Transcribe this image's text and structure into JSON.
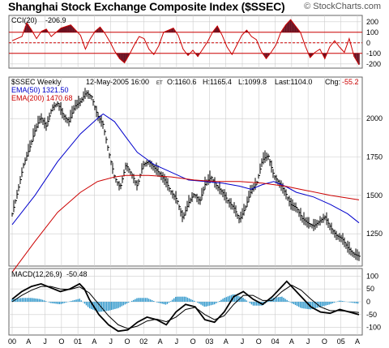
{
  "header": {
    "title": "Shanghai Stock Exchange Composite Index ($SSEC)",
    "credit": "© StockCharts.com"
  },
  "colors": {
    "red": "#cc0000",
    "dark_red": "#6b1020",
    "blue": "#0000cc",
    "macd_hist": "#3399cc",
    "grid": "#cccccc",
    "panel_border": "#666666"
  },
  "chart_data": [
    {
      "type": "line",
      "panel": "cci",
      "legend_label": "CCI(20)",
      "legend_value": "-206.9",
      "yticks": [
        200,
        100,
        0,
        -100,
        -200
      ],
      "ylim": [
        -240,
        260
      ],
      "reference_lines": [
        100,
        0,
        -100
      ],
      "points": [
        [
          0,
          20
        ],
        [
          2,
          60
        ],
        [
          3,
          190
        ],
        [
          4,
          120
        ],
        [
          5,
          40
        ],
        [
          6,
          110
        ],
        [
          7,
          130
        ],
        [
          8,
          60
        ],
        [
          9,
          100
        ],
        [
          10,
          140
        ],
        [
          12,
          170
        ],
        [
          13,
          120
        ],
        [
          14,
          70
        ],
        [
          15,
          -60
        ],
        [
          16,
          40
        ],
        [
          17,
          110
        ],
        [
          18,
          150
        ],
        [
          19,
          90
        ],
        [
          20,
          10
        ],
        [
          21,
          -80
        ],
        [
          22,
          -150
        ],
        [
          23,
          -190
        ],
        [
          24,
          -110
        ],
        [
          25,
          -20
        ],
        [
          26,
          60
        ],
        [
          27,
          40
        ],
        [
          28,
          -60
        ],
        [
          29,
          -110
        ],
        [
          30,
          -30
        ],
        [
          31,
          100
        ],
        [
          33,
          140
        ],
        [
          34,
          70
        ],
        [
          35,
          -60
        ],
        [
          36,
          -120
        ],
        [
          37,
          -70
        ],
        [
          38,
          -130
        ],
        [
          39,
          -60
        ],
        [
          40,
          10
        ],
        [
          41,
          100
        ],
        [
          42,
          160
        ],
        [
          43,
          70
        ],
        [
          44,
          -40
        ],
        [
          45,
          -110
        ],
        [
          46,
          -20
        ],
        [
          47,
          70
        ],
        [
          48,
          120
        ],
        [
          49,
          60
        ],
        [
          50,
          30
        ],
        [
          51,
          -80
        ],
        [
          52,
          -150
        ],
        [
          53,
          -90
        ],
        [
          54,
          -20
        ],
        [
          55,
          100
        ],
        [
          56,
          170
        ],
        [
          57,
          220
        ],
        [
          58,
          160
        ],
        [
          59,
          100
        ],
        [
          60,
          -30
        ],
        [
          61,
          -140
        ],
        [
          62,
          -90
        ],
        [
          63,
          -60
        ],
        [
          64,
          -150
        ],
        [
          65,
          -40
        ],
        [
          66,
          20
        ],
        [
          67,
          -40
        ],
        [
          68,
          -90
        ],
        [
          69,
          40
        ],
        [
          70,
          -130
        ],
        [
          71,
          -206.9
        ]
      ]
    },
    {
      "type": "line",
      "panel": "price",
      "legend": {
        "symbol": "$SSEC Weekly",
        "ema50": "EMA(50) 1321.50",
        "ema200": "EMA(200) 1470.68"
      },
      "info": {
        "date": "12-May-2005 16:00",
        "tz": "ET",
        "open": "O:1160.6",
        "high": "H:1165.4",
        "low": "L:1099.8",
        "last": "Last:1104.0",
        "chg_label": "Chg:",
        "chg_value": "-55.2"
      },
      "yticks": [
        2000,
        1750,
        1500,
        1250
      ],
      "ylim": [
        1040,
        2270
      ],
      "price_points": [
        [
          0,
          1380
        ],
        [
          1,
          1530
        ],
        [
          2,
          1700
        ],
        [
          3,
          1800
        ],
        [
          4,
          1920
        ],
        [
          5,
          2010
        ],
        [
          6,
          1950
        ],
        [
          7,
          2070
        ],
        [
          8,
          2100
        ],
        [
          9,
          2020
        ],
        [
          10,
          1980
        ],
        [
          11,
          2080
        ],
        [
          12,
          2110
        ],
        [
          13,
          2170
        ],
        [
          14,
          2140
        ],
        [
          15,
          2020
        ],
        [
          16,
          1960
        ],
        [
          17,
          1780
        ],
        [
          18,
          1620
        ],
        [
          19,
          1550
        ],
        [
          20,
          1700
        ],
        [
          21,
          1640
        ],
        [
          22,
          1560
        ],
        [
          23,
          1700
        ],
        [
          24,
          1720
        ],
        [
          25,
          1680
        ],
        [
          26,
          1640
        ],
        [
          27,
          1590
        ],
        [
          28,
          1520
        ],
        [
          29,
          1470
        ],
        [
          30,
          1350
        ],
        [
          31,
          1450
        ],
        [
          32,
          1510
        ],
        [
          33,
          1460
        ],
        [
          34,
          1580
        ],
        [
          35,
          1620
        ],
        [
          36,
          1560
        ],
        [
          37,
          1520
        ],
        [
          38,
          1460
        ],
        [
          39,
          1420
        ],
        [
          40,
          1340
        ],
        [
          41,
          1420
        ],
        [
          42,
          1530
        ],
        [
          43,
          1580
        ],
        [
          44,
          1730
        ],
        [
          45,
          1760
        ],
        [
          46,
          1630
        ],
        [
          47,
          1580
        ],
        [
          48,
          1520
        ],
        [
          49,
          1440
        ],
        [
          50,
          1420
        ],
        [
          51,
          1350
        ],
        [
          52,
          1320
        ],
        [
          53,
          1300
        ],
        [
          54,
          1330
        ],
        [
          55,
          1360
        ],
        [
          56,
          1290
        ],
        [
          57,
          1240
        ],
        [
          58,
          1220
        ],
        [
          59,
          1160
        ],
        [
          60,
          1120
        ],
        [
          61,
          1104
        ]
      ],
      "ema50_points": [
        [
          0,
          1310
        ],
        [
          4,
          1500
        ],
        [
          8,
          1720
        ],
        [
          12,
          1900
        ],
        [
          15,
          2000
        ],
        [
          16,
          2030
        ],
        [
          18,
          1980
        ],
        [
          20,
          1880
        ],
        [
          22,
          1780
        ],
        [
          25,
          1700
        ],
        [
          28,
          1650
        ],
        [
          31,
          1600
        ],
        [
          34,
          1590
        ],
        [
          37,
          1580
        ],
        [
          40,
          1560
        ],
        [
          42,
          1540
        ],
        [
          44,
          1570
        ],
        [
          46,
          1590
        ],
        [
          48,
          1560
        ],
        [
          50,
          1520
        ],
        [
          53,
          1490
        ],
        [
          56,
          1440
        ],
        [
          59,
          1380
        ],
        [
          61,
          1321.5
        ]
      ],
      "ema200_points": [
        [
          0,
          1000
        ],
        [
          4,
          1200
        ],
        [
          8,
          1390
        ],
        [
          12,
          1520
        ],
        [
          15,
          1590
        ],
        [
          18,
          1620
        ],
        [
          20,
          1630
        ],
        [
          24,
          1630
        ],
        [
          28,
          1620
        ],
        [
          32,
          1600
        ],
        [
          36,
          1590
        ],
        [
          40,
          1590
        ],
        [
          44,
          1580
        ],
        [
          48,
          1560
        ],
        [
          52,
          1530
        ],
        [
          56,
          1500
        ],
        [
          61,
          1470.68
        ]
      ]
    },
    {
      "type": "line",
      "panel": "macd",
      "legend_label": "MACD(12,26,9)",
      "legend_value": "-50.48",
      "yticks": [
        100,
        50,
        0,
        -50,
        -100
      ],
      "ylim": [
        -130,
        130
      ],
      "macd_points": [
        [
          0,
          10
        ],
        [
          2,
          40
        ],
        [
          4,
          60
        ],
        [
          6,
          70
        ],
        [
          8,
          55
        ],
        [
          10,
          40
        ],
        [
          12,
          50
        ],
        [
          14,
          70
        ],
        [
          15,
          50
        ],
        [
          16,
          10
        ],
        [
          18,
          -50
        ],
        [
          20,
          -90
        ],
        [
          22,
          -115
        ],
        [
          24,
          -110
        ],
        [
          26,
          -80
        ],
        [
          28,
          -60
        ],
        [
          30,
          -70
        ],
        [
          32,
          -90
        ],
        [
          34,
          -40
        ],
        [
          36,
          -10
        ],
        [
          38,
          -20
        ],
        [
          40,
          -70
        ],
        [
          42,
          -80
        ],
        [
          44,
          -40
        ],
        [
          46,
          20
        ],
        [
          48,
          40
        ],
        [
          50,
          10
        ],
        [
          52,
          -10
        ],
        [
          54,
          20
        ],
        [
          56,
          60
        ],
        [
          57,
          80
        ],
        [
          58,
          60
        ],
        [
          60,
          20
        ],
        [
          62,
          -20
        ],
        [
          64,
          -40
        ],
        [
          66,
          -45
        ],
        [
          68,
          -30
        ],
        [
          70,
          -40
        ],
        [
          72,
          -50.48
        ]
      ],
      "signal_points": [
        [
          0,
          0
        ],
        [
          2,
          25
        ],
        [
          4,
          45
        ],
        [
          6,
          60
        ],
        [
          8,
          60
        ],
        [
          10,
          50
        ],
        [
          12,
          48
        ],
        [
          14,
          58
        ],
        [
          16,
          35
        ],
        [
          18,
          -10
        ],
        [
          20,
          -55
        ],
        [
          22,
          -90
        ],
        [
          24,
          -105
        ],
        [
          26,
          -95
        ],
        [
          28,
          -75
        ],
        [
          30,
          -68
        ],
        [
          32,
          -78
        ],
        [
          34,
          -60
        ],
        [
          36,
          -30
        ],
        [
          38,
          -22
        ],
        [
          40,
          -50
        ],
        [
          42,
          -70
        ],
        [
          44,
          -55
        ],
        [
          46,
          -10
        ],
        [
          48,
          25
        ],
        [
          50,
          25
        ],
        [
          52,
          5
        ],
        [
          54,
          5
        ],
        [
          56,
          40
        ],
        [
          58,
          65
        ],
        [
          60,
          45
        ],
        [
          62,
          10
        ],
        [
          64,
          -20
        ],
        [
          66,
          -35
        ],
        [
          68,
          -35
        ],
        [
          70,
          -38
        ],
        [
          72,
          -42
        ]
      ],
      "hist_points": [
        [
          0,
          10
        ],
        [
          2,
          15
        ],
        [
          4,
          15
        ],
        [
          6,
          10
        ],
        [
          8,
          -5
        ],
        [
          10,
          -10
        ],
        [
          12,
          2
        ],
        [
          14,
          12
        ],
        [
          16,
          -25
        ],
        [
          18,
          -40
        ],
        [
          20,
          -35
        ],
        [
          22,
          -25
        ],
        [
          24,
          -5
        ],
        [
          26,
          15
        ],
        [
          28,
          15
        ],
        [
          30,
          -2
        ],
        [
          32,
          -12
        ],
        [
          34,
          20
        ],
        [
          36,
          20
        ],
        [
          38,
          2
        ],
        [
          40,
          -20
        ],
        [
          42,
          -10
        ],
        [
          44,
          15
        ],
        [
          46,
          30
        ],
        [
          48,
          15
        ],
        [
          50,
          -15
        ],
        [
          52,
          -15
        ],
        [
          54,
          15
        ],
        [
          56,
          20
        ],
        [
          58,
          -5
        ],
        [
          60,
          -25
        ],
        [
          62,
          -30
        ],
        [
          64,
          -20
        ],
        [
          66,
          -10
        ],
        [
          68,
          5
        ],
        [
          70,
          -2
        ],
        [
          72,
          -8
        ]
      ]
    }
  ],
  "x_axis": {
    "labels": [
      "00",
      "A",
      "J",
      "O",
      "01",
      "A",
      "J",
      "O",
      "02",
      "A",
      "J",
      "O",
      "03",
      "A",
      "J",
      "O",
      "04",
      "A",
      "J",
      "O",
      "05",
      "A"
    ],
    "weeks_total": 276
  }
}
